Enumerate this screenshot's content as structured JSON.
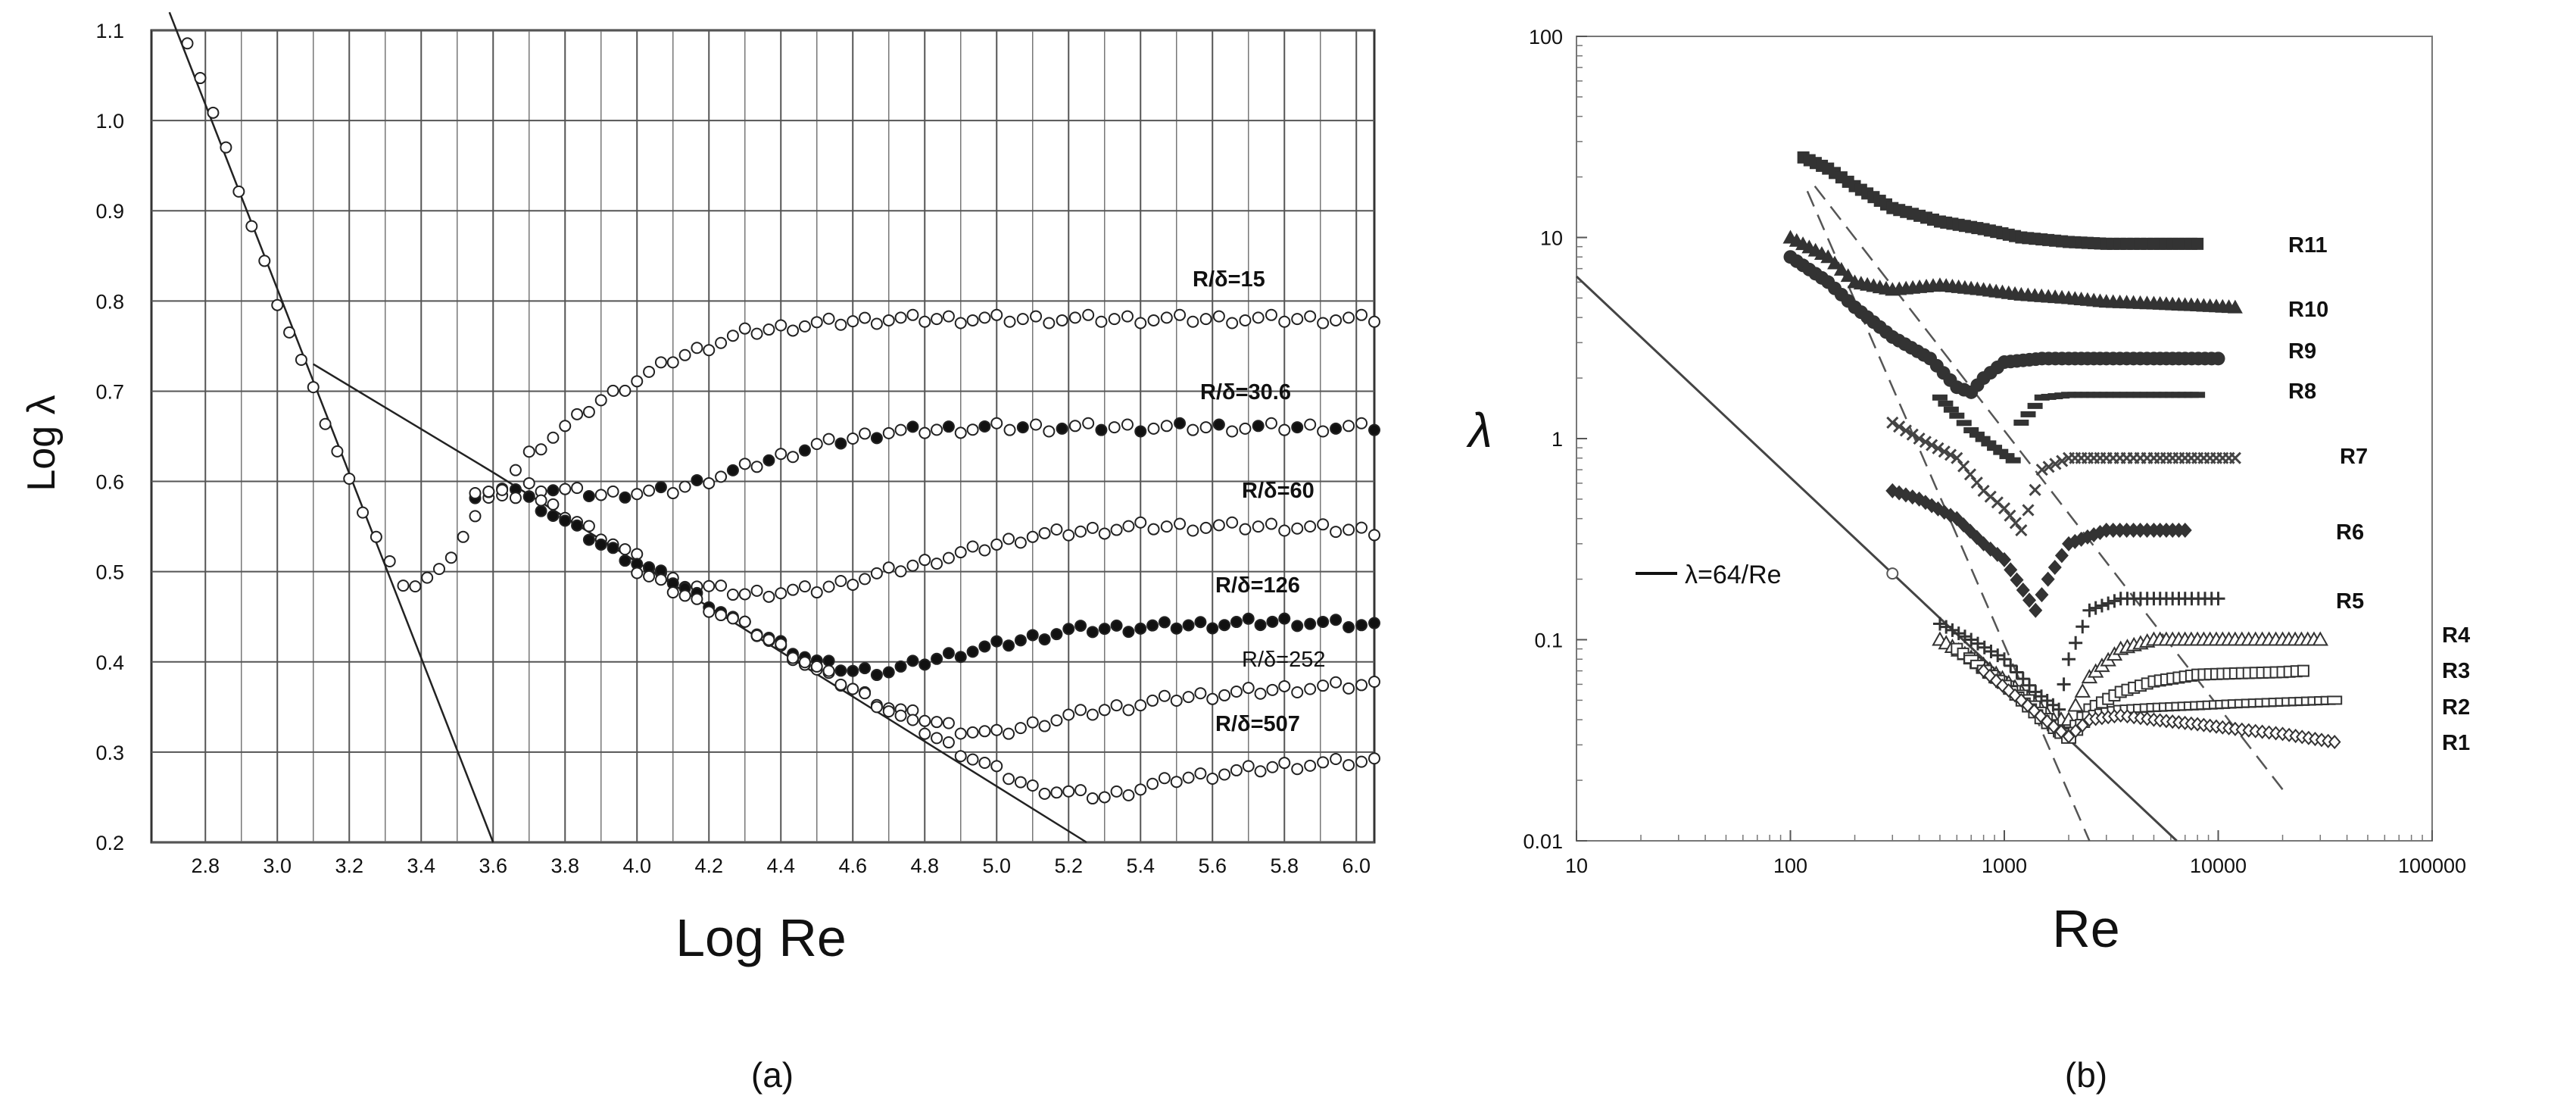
{
  "chart_data": [
    {
      "type": "scatter",
      "title": "",
      "panel_label": "(a)",
      "xlabel": "Log Re",
      "ylabel": "Log λ",
      "xlim": [
        2.65,
        6.05
      ],
      "ylim": [
        0.2,
        1.1
      ],
      "x_ticks": [
        "2.8",
        "3.0",
        "3.2",
        "3.4",
        "3.6",
        "3.8",
        "4.0",
        "4.2",
        "4.4",
        "4.6",
        "4.8",
        "5.0",
        "5.2",
        "5.4",
        "5.6",
        "5.8",
        "6.0"
      ],
      "y_ticks": [
        "0.2",
        "0.3",
        "0.4",
        "0.5",
        "0.6",
        "0.7",
        "0.8",
        "0.9",
        "1.0",
        "1.1"
      ],
      "grid": true,
      "reference_lines": [
        {
          "name": "laminar",
          "x": [
            2.7,
            3.6
          ],
          "y": [
            1.12,
            0.2
          ]
        },
        {
          "name": "blasius",
          "x": [
            3.1,
            3.6,
            5.25
          ],
          "y": [
            0.73,
            0.61,
            0.2
          ]
        }
      ],
      "series": [
        {
          "name": "R/δ=15",
          "x": [
            2.75,
            3.0,
            3.2,
            3.35,
            3.45,
            3.55,
            3.7,
            3.9,
            4.1,
            4.3,
            4.5,
            4.7,
            5.0,
            5.4,
            5.8,
            6.05
          ],
          "y": [
            1.09,
            0.8,
            0.6,
            0.48,
            0.5,
            0.56,
            0.63,
            0.69,
            0.735,
            0.765,
            0.775,
            0.78,
            0.78,
            0.78,
            0.78,
            0.78
          ]
        },
        {
          "name": "R/δ=30.6",
          "x": [
            3.55,
            3.7,
            3.9,
            4.1,
            4.3,
            4.5,
            4.7,
            5.0,
            5.4,
            5.8,
            6.05
          ],
          "y": [
            0.58,
            0.595,
            0.585,
            0.59,
            0.615,
            0.64,
            0.655,
            0.66,
            0.66,
            0.66,
            0.66
          ]
        },
        {
          "name": "R/δ=60",
          "x": [
            3.55,
            3.7,
            3.9,
            4.1,
            4.3,
            4.5,
            4.7,
            4.9,
            5.1,
            5.4,
            5.8,
            6.05
          ],
          "y": [
            0.59,
            0.585,
            0.54,
            0.49,
            0.475,
            0.48,
            0.5,
            0.52,
            0.54,
            0.55,
            0.55,
            0.545
          ]
        },
        {
          "name": "R/δ=126",
          "x": [
            3.7,
            3.9,
            4.1,
            4.3,
            4.5,
            4.6,
            4.7,
            4.9,
            5.2,
            5.5,
            5.8,
            6.05
          ],
          "y": [
            0.58,
            0.53,
            0.49,
            0.44,
            0.4,
            0.39,
            0.39,
            0.41,
            0.435,
            0.44,
            0.445,
            0.44
          ]
        },
        {
          "name": "R/δ=252",
          "x": [
            4.0,
            4.3,
            4.5,
            4.7,
            4.9,
            5.0,
            5.2,
            5.5,
            5.8,
            6.05
          ],
          "y": [
            0.5,
            0.44,
            0.39,
            0.35,
            0.325,
            0.32,
            0.34,
            0.36,
            0.37,
            0.375
          ]
        },
        {
          "name": "R/δ=507",
          "x": [
            4.3,
            4.6,
            4.9,
            5.1,
            5.3,
            5.5,
            5.8,
            6.05
          ],
          "y": [
            0.44,
            0.37,
            0.3,
            0.26,
            0.25,
            0.27,
            0.285,
            0.29
          ]
        }
      ],
      "curve_labels": [
        "R/δ=15",
        "R/δ=30.6",
        "R/δ=60",
        "R/δ=126",
        "R/δ=252",
        "R/δ=507"
      ]
    },
    {
      "type": "scatter",
      "title": "",
      "panel_label": "(b)",
      "xlabel": "Re",
      "ylabel": "λ",
      "xscale": "log",
      "yscale": "log",
      "xlim": [
        10,
        100000
      ],
      "ylim": [
        0.01,
        100
      ],
      "x_ticks": [
        "10",
        "100",
        "1000",
        "10000",
        "100000"
      ],
      "y_ticks": [
        "0.01",
        "0.1",
        "1",
        "10",
        "100"
      ],
      "grid": false,
      "legend": "λ=64/Re",
      "reference_lines": [
        {
          "name": "λ=64/Re",
          "x": [
            10,
            6400
          ],
          "y": [
            6.4,
            0.01
          ]
        },
        {
          "name": "dashed-1",
          "x": [
            120,
            2500
          ],
          "y": [
            17,
            0.01
          ]
        },
        {
          "name": "dashed-2",
          "x": [
            130,
            20000
          ],
          "y": [
            18,
            0.018
          ]
        }
      ],
      "series": [
        {
          "name": "R11",
          "x": [
            115,
            150,
            200,
            300,
            500,
            800,
            1200,
            2000,
            3000,
            5000,
            8000
          ],
          "y": [
            25,
            22,
            18,
            14,
            12,
            11,
            10,
            9.5,
            9.3,
            9.3,
            9.3
          ]
        },
        {
          "name": "R10",
          "x": [
            100,
            150,
            200,
            300,
            500,
            800,
            1200,
            2000,
            3000,
            5000,
            8000,
            12000
          ],
          "y": [
            10,
            8,
            6,
            5.5,
            5.8,
            5.5,
            5.2,
            5,
            4.8,
            4.7,
            4.6,
            4.5
          ]
        },
        {
          "name": "R9",
          "x": [
            100,
            150,
            200,
            300,
            450,
            600,
            700,
            800,
            1000,
            1500,
            2000,
            3000,
            5000,
            7000,
            10000
          ],
          "y": [
            8,
            6,
            4.5,
            3.2,
            2.5,
            1.8,
            1.7,
            2,
            2.4,
            2.5,
            2.5,
            2.5,
            2.5,
            2.5,
            2.5
          ]
        },
        {
          "name": "R8",
          "x": [
            500,
            600,
            700,
            900,
            1100,
            1200,
            1500,
            2000,
            3000,
            5000,
            8000
          ],
          "y": [
            1.6,
            1.3,
            1.1,
            0.9,
            0.78,
            1.2,
            1.6,
            1.65,
            1.65,
            1.65,
            1.65
          ]
        },
        {
          "name": "R7",
          "x": [
            300,
            400,
            600,
            800,
            1000,
            1200,
            1500,
            2000,
            3000,
            5000,
            8000,
            12000
          ],
          "y": [
            1.2,
            1,
            0.8,
            0.55,
            0.45,
            0.35,
            0.7,
            0.8,
            0.8,
            0.8,
            0.8,
            0.8
          ]
        },
        {
          "name": "R6",
          "x": [
            300,
            400,
            600,
            800,
            1000,
            1400,
            1600,
            2000,
            3000,
            5000,
            7000
          ],
          "y": [
            0.55,
            0.5,
            0.4,
            0.3,
            0.25,
            0.14,
            0.2,
            0.3,
            0.35,
            0.35,
            0.35
          ]
        },
        {
          "name": "R5",
          "x": [
            500,
            700,
            1000,
            1400,
            1800,
            2000,
            2500,
            3500,
            5000,
            7000,
            10000
          ],
          "y": [
            0.12,
            0.1,
            0.08,
            0.055,
            0.045,
            0.08,
            0.14,
            0.16,
            0.16,
            0.16,
            0.16
          ]
        },
        {
          "name": "R4",
          "x": [
            500,
            800,
            1200,
            1700,
            2000,
            2500,
            3500,
            5000,
            8000,
            12000,
            20000,
            30000
          ],
          "y": [
            0.1,
            0.075,
            0.055,
            0.04,
            0.04,
            0.065,
            0.09,
            0.1,
            0.1,
            0.1,
            0.1,
            0.1
          ]
        },
        {
          "name": "R3",
          "x": [
            600,
            900,
            1300,
            1800,
            2000,
            2500,
            3500,
            5000,
            8000,
            12000,
            20000,
            25000
          ],
          "y": [
            0.09,
            0.065,
            0.05,
            0.035,
            0.034,
            0.045,
            0.055,
            0.062,
            0.067,
            0.068,
            0.069,
            0.07
          ]
        },
        {
          "name": "R2",
          "x": [
            700,
            1000,
            1500,
            2000,
            2500,
            3500,
            5000,
            8000,
            12000,
            20000,
            35000
          ],
          "y": [
            0.08,
            0.06,
            0.04,
            0.032,
            0.042,
            0.045,
            0.046,
            0.047,
            0.048,
            0.049,
            0.05
          ]
        },
        {
          "name": "R1",
          "x": [
            800,
            1200,
            1700,
            2000,
            2500,
            3500,
            5000,
            8000,
            12000,
            20000,
            35000
          ],
          "y": [
            0.07,
            0.05,
            0.037,
            0.033,
            0.04,
            0.042,
            0.04,
            0.038,
            0.036,
            0.034,
            0.031
          ]
        }
      ],
      "curve_labels": [
        "R11",
        "R10",
        "R9",
        "R8",
        "R7",
        "R6",
        "R5",
        "R4",
        "R3",
        "R2",
        "R1"
      ]
    }
  ]
}
